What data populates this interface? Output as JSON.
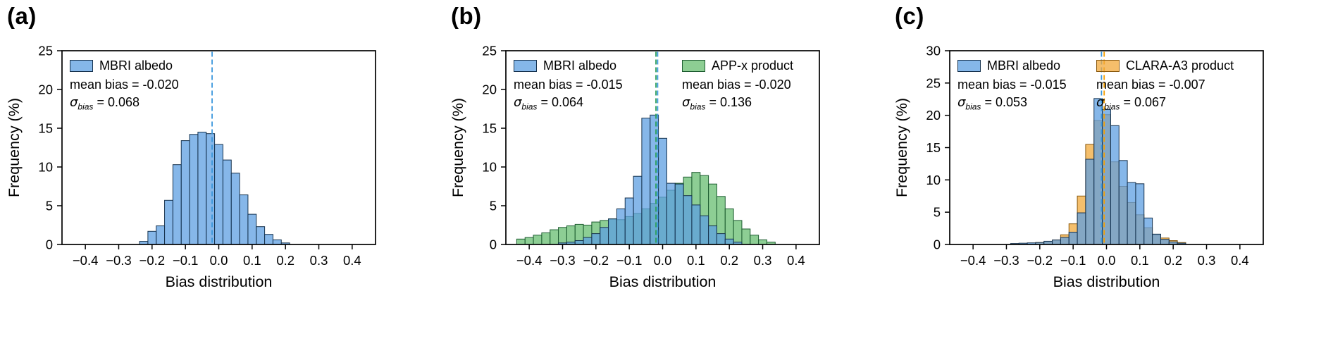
{
  "figure": {
    "panels": [
      {
        "letter": "(a)"
      },
      {
        "letter": "(b)"
      },
      {
        "letter": "(c)"
      }
    ]
  },
  "chart_data": [
    {
      "type": "bar",
      "subtype": "histogram",
      "title": "",
      "xlabel": "Bias distribution",
      "ylabel": "Frequency (%)",
      "xlim": [
        -0.47,
        0.47
      ],
      "ylim": [
        0,
        25
      ],
      "xticks": [
        -0.4,
        -0.3,
        -0.2,
        -0.1,
        0,
        0.1,
        0.2,
        0.3,
        0.4
      ],
      "xtick_labels": [
        "−0.4",
        "−0.3",
        "−0.2",
        "−0.1",
        "0.0",
        "0.1",
        "0.2",
        "0.3",
        "0.4"
      ],
      "yticks": [
        0,
        5,
        10,
        15,
        20,
        25
      ],
      "grid": false,
      "legend_position": "top-left",
      "bin_width": 0.025,
      "series": [
        {
          "name": "MBRI albedo",
          "fill": "#5D9FE2",
          "edge": "#16324E",
          "mean_line_color": "#3A97DD",
          "mean_bias": -0.02,
          "sigma_bias": 0.068,
          "mean_bias_label": "mean bias = -0.020",
          "sigma_symbol": "σ",
          "sigma_sub": "bias",
          "sigma_value": " = 0.068",
          "bin_start": -0.225,
          "values": [
            0.4,
            1.7,
            2.4,
            5.7,
            10.3,
            13.4,
            14.2,
            14.5,
            14.3,
            12.9,
            10.9,
            9.2,
            6.4,
            3.9,
            2.3,
            1.3,
            0.6,
            0.2
          ]
        }
      ]
    },
    {
      "type": "bar",
      "subtype": "histogram",
      "title": "",
      "xlabel": "Bias distribution",
      "ylabel": "Frequency (%)",
      "xlim": [
        -0.47,
        0.47
      ],
      "ylim": [
        0,
        25
      ],
      "xticks": [
        -0.4,
        -0.3,
        -0.2,
        -0.1,
        0,
        0.1,
        0.2,
        0.3,
        0.4
      ],
      "xtick_labels": [
        "−0.4",
        "−0.3",
        "−0.2",
        "−0.1",
        "0.0",
        "0.1",
        "0.2",
        "0.3",
        "0.4"
      ],
      "yticks": [
        0,
        5,
        10,
        15,
        20,
        25
      ],
      "grid": false,
      "legend_position": "top-left and top-right",
      "bin_width": 0.025,
      "series": [
        {
          "name": "MBRI albedo",
          "fill": "#5D9FE2",
          "edge": "#16324E",
          "mean_line_color": "#3A97DD",
          "mean_bias": -0.015,
          "sigma_bias": 0.064,
          "mean_bias_label": "mean bias = -0.015",
          "sigma_symbol": "σ",
          "sigma_sub": "bias",
          "sigma_value": " = 0.064",
          "bin_start": -0.3,
          "values": [
            0.2,
            0.3,
            0.5,
            0.9,
            1.4,
            2.2,
            3.3,
            4.6,
            6.0,
            8.8,
            16.3,
            16.7,
            13.7,
            7.9,
            7.8,
            6.3,
            5.1,
            3.7,
            2.4,
            1.4,
            0.7,
            0.3
          ]
        },
        {
          "name": "APP-x product",
          "fill": "#67BE70",
          "edge": "#1D5C30",
          "mean_line_color": "#2FA05A",
          "mean_bias": -0.02,
          "sigma_bias": 0.136,
          "mean_bias_label": "mean bias = -0.020",
          "sigma_symbol": "σ",
          "sigma_sub": "bias",
          "sigma_value": " = 0.136",
          "bin_start": -0.425,
          "values": [
            0.7,
            0.9,
            1.2,
            1.5,
            1.9,
            2.2,
            2.4,
            2.6,
            2.5,
            2.9,
            3.1,
            3.3,
            3.2,
            3.6,
            4.0,
            4.6,
            5.3,
            6.1,
            7.0,
            7.9,
            8.7,
            9.3,
            8.9,
            7.8,
            6.2,
            4.6,
            3.1,
            2.0,
            1.2,
            0.6,
            0.3
          ]
        }
      ]
    },
    {
      "type": "bar",
      "subtype": "histogram",
      "title": "",
      "xlabel": "Bias distribution",
      "ylabel": "Frequency (%)",
      "xlim": [
        -0.47,
        0.47
      ],
      "ylim": [
        0,
        30
      ],
      "xticks": [
        -0.4,
        -0.3,
        -0.2,
        -0.1,
        0,
        0.1,
        0.2,
        0.3,
        0.4
      ],
      "xtick_labels": [
        "−0.4",
        "−0.3",
        "−0.2",
        "−0.1",
        "0.0",
        "0.1",
        "0.2",
        "0.3",
        "0.4"
      ],
      "yticks": [
        0,
        5,
        10,
        15,
        20,
        25,
        30
      ],
      "grid": false,
      "legend_position": "top-left and top-right",
      "bin_width": 0.025,
      "series": [
        {
          "name": "MBRI albedo",
          "fill": "#5D9FE2",
          "edge": "#16324E",
          "mean_line_color": "#3A97DD",
          "mean_bias": -0.015,
          "sigma_bias": 0.053,
          "mean_bias_label": "mean bias = -0.015",
          "sigma_symbol": "σ",
          "sigma_sub": "bias",
          "sigma_value": " = 0.053",
          "bin_start": -0.275,
          "values": [
            0.15,
            0.2,
            0.25,
            0.3,
            0.5,
            0.7,
            1.1,
            1.9,
            4.9,
            13.2,
            22.6,
            20.9,
            18.4,
            13.0,
            9.6,
            9.4,
            4.1,
            1.6,
            0.8,
            0.4,
            0.2
          ]
        },
        {
          "name": "CLARA-A3 product",
          "fill": "#F2A93B",
          "edge": "#8A5A10",
          "mean_line_color": "#F59F00",
          "mean_bias": -0.007,
          "sigma_bias": 0.067,
          "mean_bias_label": "mean bias = -0.007",
          "sigma_symbol": "σ",
          "sigma_sub": "bias",
          "sigma_value": " = 0.067",
          "bin_start": -0.2,
          "values": [
            0.3,
            0.4,
            0.7,
            1.5,
            3.2,
            7.5,
            15.5,
            19.2,
            20.1,
            12.8,
            9.0,
            6.5,
            4.6,
            2.6,
            1.5,
            1.0,
            0.6,
            0.3
          ]
        }
      ]
    }
  ]
}
